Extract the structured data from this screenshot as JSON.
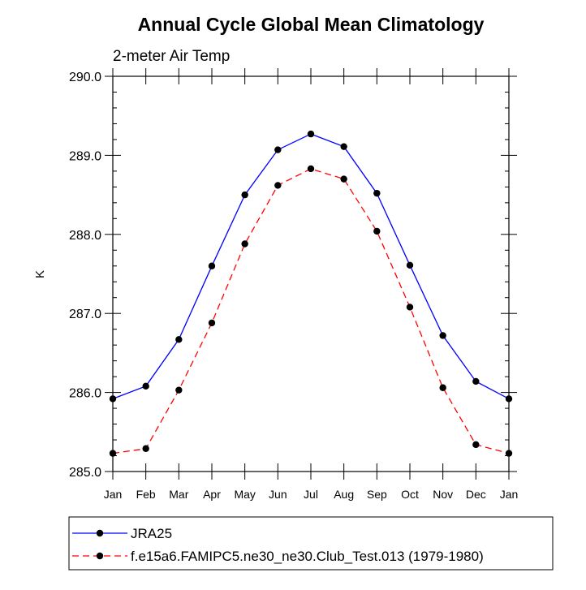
{
  "chart_data": {
    "type": "line",
    "title": "Annual Cycle Global Mean Climatology",
    "subtitle": "2-meter Air Temp",
    "xlabel": "",
    "ylabel": "K",
    "ylim": [
      285.0,
      290.0
    ],
    "y_ticks": [
      "285.0",
      "286.0",
      "287.0",
      "288.0",
      "289.0",
      "290.0"
    ],
    "categories": [
      "Jan",
      "Feb",
      "Mar",
      "Apr",
      "May",
      "Jun",
      "Jul",
      "Aug",
      "Sep",
      "Oct",
      "Nov",
      "Dec",
      "Jan"
    ],
    "grid": false,
    "legend_position": "bottom",
    "series": [
      {
        "name": "JRA25",
        "color": "#0000ff",
        "dash": "solid",
        "marker": "filled-circle",
        "values": [
          285.92,
          286.08,
          286.67,
          287.6,
          288.5,
          289.07,
          289.27,
          289.11,
          288.52,
          287.61,
          286.72,
          286.14,
          285.92
        ]
      },
      {
        "name": "f.e15a6.FAMIPC5.ne30_ne30.Club_Test.013 (1979-1980)",
        "color": "#ff0000",
        "dash": "dashed",
        "marker": "filled-circle",
        "values": [
          285.23,
          285.29,
          286.03,
          286.88,
          287.88,
          288.62,
          288.83,
          288.7,
          288.04,
          287.08,
          286.06,
          285.34,
          285.23
        ]
      }
    ]
  }
}
